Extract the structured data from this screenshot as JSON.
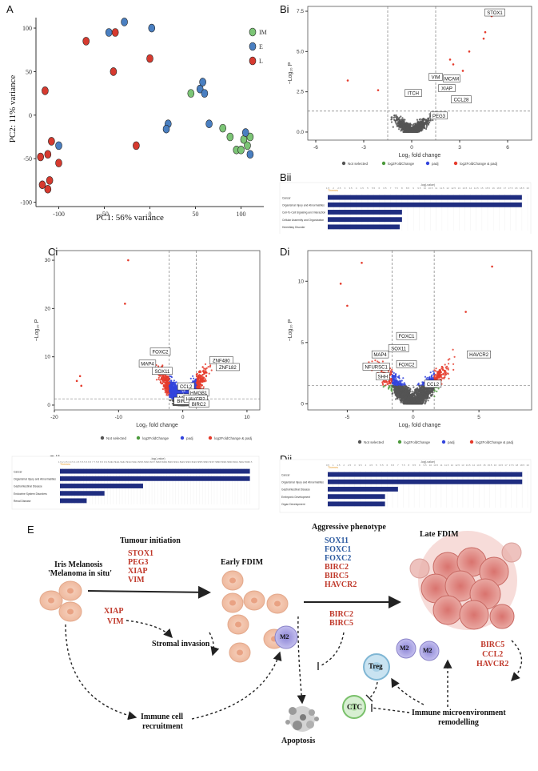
{
  "panels": {
    "A": "A",
    "Bi": "Bi",
    "Bii": "Bii",
    "Ci": "Ci",
    "Cii": "Cii",
    "Di": "Di",
    "Dii": "Dii",
    "E": "E"
  },
  "colors": {
    "IM": "#7cc576",
    "E": "#4a7fc1",
    "L": "#d63a2f",
    "ns": "#555555",
    "fc": "#4c9a3c",
    "p": "#3344dd",
    "both": "#e53b2c",
    "bar": "#1f2d80",
    "red_text": "#c0392b",
    "blue_text": "#2c5aa0"
  },
  "pca": {
    "xlabel": "PC1: 56% variance",
    "ylabel": "PC2: 11% variance",
    "xticks": [
      "-100",
      "-50",
      "0",
      "50",
      "100"
    ],
    "yticks": [
      "100",
      "50",
      "0",
      "-50",
      "-100"
    ],
    "xlim": [
      -125,
      125
    ],
    "ylim": [
      -105,
      112
    ],
    "legend": [
      "IM",
      "E",
      "L"
    ],
    "points": {
      "IM": [
        [
          45,
          25
        ],
        [
          80,
          -15
        ],
        [
          88,
          -25
        ],
        [
          95,
          -40
        ],
        [
          100,
          -40
        ],
        [
          103,
          -28
        ],
        [
          107,
          -35
        ],
        [
          110,
          -25
        ]
      ],
      "E": [
        [
          -28,
          107
        ],
        [
          -45,
          95
        ],
        [
          2,
          100
        ],
        [
          20,
          -10
        ],
        [
          18,
          -16
        ],
        [
          55,
          30
        ],
        [
          58,
          38
        ],
        [
          60,
          25
        ],
        [
          65,
          -10
        ],
        [
          105,
          -20
        ],
        [
          110,
          -45
        ],
        [
          -100,
          -35
        ]
      ],
      "L": [
        [
          -70,
          85
        ],
        [
          -38,
          95
        ],
        [
          -40,
          50
        ],
        [
          0,
          65
        ],
        [
          -15,
          -35
        ],
        [
          -115,
          28
        ],
        [
          -108,
          -30
        ],
        [
          -112,
          -45
        ],
        [
          -120,
          -48
        ],
        [
          -100,
          -55
        ],
        [
          -110,
          -75
        ],
        [
          -118,
          -80
        ],
        [
          -112,
          -85
        ]
      ]
    }
  },
  "volcano_B": {
    "xlabel": "Log₂ fold change",
    "ylabel": "−Log₁₀ P",
    "xticks": [
      "-6",
      "-3",
      "0",
      "3",
      "6"
    ],
    "yticks": [
      "0.0",
      "2.5",
      "5.0",
      "7.5"
    ],
    "xlim": [
      -6.5,
      7.5
    ],
    "ylim": [
      -0.5,
      7.8
    ],
    "labels": [
      "STOX1",
      "VIM",
      "MCAM",
      "XIAP",
      "CCL28",
      "ITCH",
      "PEG3"
    ],
    "legend": [
      "Not selected",
      "log2FoldChange",
      "padj",
      "log2FoldChange & padj"
    ]
  },
  "bar_Bii": {
    "title": "-log(-value)",
    "legend": "Themes",
    "ticks": [
      "1.5",
      "2",
      "2.5",
      "3",
      "3.5",
      "4",
      "4.5",
      "5",
      "5.5",
      "6",
      "6.5",
      "7",
      "7.5",
      "8",
      "8.5",
      "9",
      "9.5",
      "10",
      "10.5",
      "11",
      "11.5",
      "12",
      "12.5",
      "13",
      "13.5",
      "14",
      "14.5",
      "15",
      "15.5",
      "16",
      "16.5",
      "17",
      "17.5",
      "18",
      "18.5",
      "19"
    ],
    "xlim": [
      1.5,
      19
    ],
    "categories": [
      "Cancer",
      "Organismal Injury and Abnormalities",
      "Cell-To-Cell Signaling and Interaction",
      "Cellular Assembly and Organization",
      "Hereditary Disorder"
    ],
    "values": [
      18.5,
      18.5,
      8.0,
      8.0,
      7.8
    ]
  },
  "volcano_C": {
    "xlabel": "Log₂ fold change",
    "ylabel": "−Log₁₀ P",
    "xticks": [
      "-20",
      "-10",
      "0",
      "10"
    ],
    "yticks": [
      "0",
      "10",
      "20",
      "30"
    ],
    "xlim": [
      -20,
      12
    ],
    "ylim": [
      -1,
      32
    ],
    "labels": [
      "FOXC2",
      "MAP4",
      "SOX11",
      "CCL2",
      "ZNF480",
      "ZNF182",
      "NRAS",
      "BIRC5",
      "HMGB1",
      "HAVCR2",
      "BIRC2"
    ],
    "legend": [
      "Not selected",
      "log2FoldChange",
      "padj",
      "log2FoldChange & padj"
    ]
  },
  "bar_Cii": {
    "title": "-log(-value)",
    "legend": "Themes",
    "ticks": [
      "1.5",
      "2",
      "2.5",
      "3",
      "3.5",
      "4",
      "4.5",
      "5",
      "5.5",
      "6",
      "6.5",
      "7",
      "7.5",
      "8",
      "8.5",
      "9",
      "9.5",
      "10",
      "10.5",
      "11",
      "11.5",
      "12",
      "12.5",
      "13",
      "13.5",
      "14",
      "14.5",
      "15",
      "15.5",
      "16",
      "16.5",
      "17",
      "17.5",
      "18",
      "18.5",
      "19",
      "19.5",
      "20",
      "20.5",
      "21",
      "21.5",
      "22",
      "22.5",
      "23",
      "23.5",
      "24",
      "24.5",
      "25",
      "25.5",
      "26",
      "26.5",
      "27",
      "27.5",
      "28",
      "28.5",
      "29",
      "29.5",
      "30",
      "30.5",
      "31",
      "31.5",
      "32",
      "32.5",
      "33",
      "33.5"
    ],
    "xlim": [
      1.5,
      34.5
    ],
    "categories": [
      "Cancer",
      "Organismal Injury and Abnormalities",
      "Gastrointestinal Disease",
      "Endocrine System Disorders",
      "Renal Disease"
    ],
    "values": [
      33.5,
      33.5,
      15.5,
      9.0,
      6.0
    ]
  },
  "volcano_D": {
    "xlabel": "Log₂ fold change",
    "ylabel": "−Log₁₀ P",
    "xticks": [
      "-5",
      "0",
      "5"
    ],
    "yticks": [
      "0",
      "5",
      "10"
    ],
    "xlim": [
      -8,
      9
    ],
    "ylim": [
      -0.5,
      12.5
    ],
    "labels": [
      "FOXC1",
      "SOX11",
      "MAP4",
      "NFURSC1",
      "FOXC2",
      "SHH",
      "HAVCR2",
      "CCL2"
    ],
    "legend": [
      "Not selected",
      "log2FoldChange",
      "padj",
      "log2FoldChange & padj"
    ]
  },
  "bar_Dii": {
    "title": "-log(-value)",
    "legend": "Themes",
    "ticks": [
      "0.5",
      "1",
      "1.5",
      "2",
      "2.5",
      "3",
      "3.5",
      "4",
      "4.5",
      "5",
      "5.5",
      "6",
      "6.5",
      "7",
      "7.5",
      "8",
      "8.5",
      "9",
      "9.5",
      "10",
      "10.5",
      "11",
      "11.5",
      "12",
      "12.5",
      "13",
      "13.5",
      "14",
      "14.5",
      "15",
      "15.5",
      "16",
      "16.5",
      "17",
      "17.5",
      "18",
      "18.5",
      "19"
    ],
    "xlim": [
      0.5,
      19
    ],
    "categories": [
      "Cancer",
      "Organismal Injury and Abnormalities",
      "Gastrointestinal Disease",
      "Embryonic Development",
      "Organ Development"
    ],
    "values": [
      18.5,
      18.5,
      7.0,
      5.8,
      5.8
    ]
  },
  "diagram": {
    "tumour_initiation": "Tumour initiation",
    "initiation_genes": [
      "STOX1",
      "PEG3",
      "XIAP",
      "VIM"
    ],
    "iris_melanosis": "Iris Melanosis",
    "melanoma_in_situ": "'Melanoma in situ'",
    "xiap": "XIAP",
    "vim": "VIM",
    "stromal_invasion": "Stromal invasion",
    "immune_cell": "Immune cell",
    "recruitment": "recruitment",
    "early_fdim": "Early FDIM",
    "m2": "M2",
    "aggressive_phenotype": "Aggressive phenotype",
    "aggressive_genes_blue": [
      "SOX11",
      "FOXC1",
      "FOXC2"
    ],
    "aggressive_genes_red": [
      "BIRC2",
      "BIRC5",
      "HAVCR2"
    ],
    "apoptosis_genes": [
      "BIRC2",
      "BIRC5"
    ],
    "apoptosis": "Apoptosis",
    "late_fdim": "Late FDIM",
    "treg": "Treg",
    "ctc": "CTC",
    "remodel_genes": [
      "BIRC5",
      "CCL2",
      "HAVCR2"
    ],
    "immune_micro": "Immune microenvironment",
    "remodelling": "remodelling"
  }
}
